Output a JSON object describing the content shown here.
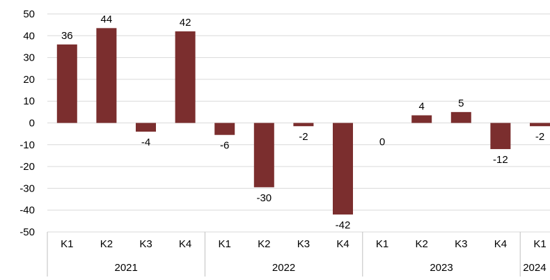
{
  "chart_data": {
    "type": "bar",
    "title": "",
    "xlabel": "",
    "ylabel": "",
    "ylim": [
      -50,
      50
    ],
    "yticks": [
      50,
      40,
      30,
      20,
      10,
      0,
      -10,
      -20,
      -30,
      -40,
      -50
    ],
    "grid": true,
    "legend": "none",
    "bar_color": "#7B2E2E",
    "groups": [
      {
        "label": "2021",
        "categories": [
          "K1",
          "K2",
          "K3",
          "K4"
        ]
      },
      {
        "label": "2022",
        "categories": [
          "K1",
          "K2",
          "K3",
          "K4"
        ]
      },
      {
        "label": "2023",
        "categories": [
          "K1",
          "K2",
          "K3",
          "K4"
        ]
      },
      {
        "label": "2024",
        "categories": [
          "K1"
        ]
      }
    ],
    "values": [
      36,
      43.5,
      -4,
      42,
      -5.5,
      -29.5,
      -1.5,
      -42,
      0,
      3.5,
      5,
      -12,
      -1.5
    ],
    "data_labels": [
      "36",
      "44",
      "-4",
      "42",
      "-6",
      "-30",
      "-2",
      "-42",
      "0",
      "4",
      "5",
      "-12",
      "-2"
    ]
  }
}
